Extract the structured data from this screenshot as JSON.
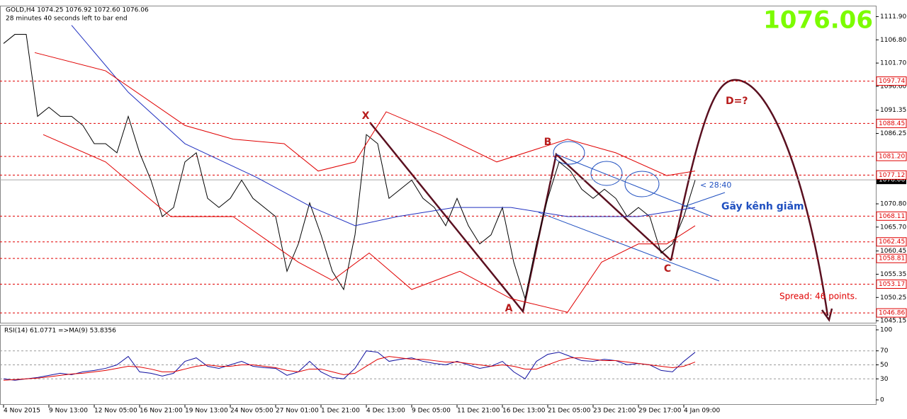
{
  "chart_data": [
    {
      "type": "line",
      "title": "GOLD,H4  1074.25  1076.92  1072.60  1076.06",
      "subtitle": "28 minutes 40 seconds left to bar end",
      "last_price": 1076.06,
      "last_color": "#7cfc00",
      "xlim": [
        -1.25,
        307.75
      ],
      "ylim": [
        1044.7,
        1114.3
      ],
      "xticks": [
        {
          "value": 0,
          "label": "4 Nov 2015"
        },
        {
          "value": 16,
          "label": "9 Nov 13:00"
        },
        {
          "value": 32,
          "label": "12 Nov 05:00"
        },
        {
          "value": 48,
          "label": "16 Nov 21:00"
        },
        {
          "value": 64,
          "label": "19 Nov 13:00"
        },
        {
          "value": 80,
          "label": "24 Nov 05:00"
        },
        {
          "value": 96,
          "label": "27 Nov 01:00"
        },
        {
          "value": 112,
          "label": "1 Dec 21:00"
        },
        {
          "value": 128,
          "label": "4 Dec 13:00"
        },
        {
          "value": 144,
          "label": "9 Dec 05:00"
        },
        {
          "value": 160,
          "label": "11 Dec 21:00"
        },
        {
          "value": 176,
          "label": "16 Dec 13:00"
        },
        {
          "value": 192,
          "label": "21 Dec 05:00"
        },
        {
          "value": 208,
          "label": "23 Dec 21:00"
        },
        {
          "value": 224,
          "label": "29 Dec 17:00"
        },
        {
          "value": 240,
          "label": "4 Jan 09:00"
        }
      ],
      "yticks": [
        {
          "value": 1111.9,
          "label": "1111.90"
        },
        {
          "value": 1106.8,
          "label": "1106.80"
        },
        {
          "value": 1101.7,
          "label": "1101.70"
        },
        {
          "value": 1096.6,
          "label": "1096.60"
        },
        1091.35,
        1086.25,
        {
          "value": 1070.8,
          "label": "1070.80"
        },
        {
          "value": 1065.7,
          "label": "1065.70"
        },
        1060.45,
        1055.35,
        1050.25,
        1045.15
      ],
      "current": 1076.06,
      "levels": [
        1097.74,
        1088.45,
        {
          "value": 1081.2,
          "label": "1081.20"
        },
        1077.12,
        1068.11,
        1062.45,
        1058.81,
        1053.17,
        1046.86
      ],
      "level_color": "#e00000",
      "series": [
        {
          "name": "Close",
          "color": "#000000",
          "x": [
            0,
            4,
            8,
            12,
            16,
            20,
            24,
            28,
            32,
            36,
            40,
            44,
            48,
            52,
            56,
            60,
            64,
            68,
            72,
            76,
            80,
            84,
            88,
            92,
            96,
            100,
            104,
            108,
            112,
            116,
            120,
            124,
            128,
            132,
            136,
            140,
            144,
            148,
            152,
            156,
            160,
            164,
            168,
            172,
            176,
            180,
            184,
            188,
            192,
            196,
            200,
            204,
            208,
            212,
            216,
            220,
            224,
            228,
            232,
            236,
            240,
            244
          ],
          "values": [
            1106,
            1108,
            1108,
            1090,
            1092,
            1090,
            1090,
            1088,
            1084,
            1084,
            1082,
            1090,
            1082,
            1076,
            1068,
            1070,
            1080,
            1082,
            1072,
            1070,
            1072,
            1076,
            1072,
            1070,
            1068,
            1056,
            1062,
            1071,
            1064,
            1056,
            1052,
            1064,
            1086,
            1084,
            1072,
            1074,
            1076,
            1072,
            1070,
            1066,
            1072,
            1066,
            1062,
            1064,
            1070,
            1058,
            1050,
            1062,
            1072,
            1080,
            1078,
            1074,
            1072,
            1074,
            1072,
            1068,
            1070,
            1068,
            1060,
            1062,
            1068,
            1076
          ]
        },
        {
          "name": "MA",
          "color": "#2030c0",
          "x": [
            24,
            44,
            64,
            89,
            109,
            124,
            139,
            159,
            179,
            199,
            224,
            244
          ],
          "values": [
            1110,
            1095.3,
            1084,
            1076.7,
            1070,
            1066,
            1068,
            1070,
            1070,
            1068,
            1068,
            1070
          ]
        },
        {
          "name": "Upper",
          "color": "#e00000",
          "x": [
            11,
            36,
            64,
            81,
            99,
            111,
            124,
            135,
            154,
            174,
            199,
            216,
            234,
            244
          ],
          "values": [
            1104,
            1100,
            1088,
            1085,
            1084,
            1078,
            1080,
            1091,
            1086,
            1080,
            1085,
            1082,
            1077,
            1078
          ]
        },
        {
          "name": "Lower",
          "color": "#e00000",
          "x": [
            14,
            36,
            59,
            81,
            104,
            116,
            129,
            144,
            161,
            179,
            199,
            211,
            224,
            234,
            244
          ],
          "values": [
            1086,
            1080,
            1068,
            1068,
            1058,
            1054,
            1060,
            1052,
            1056,
            1050,
            1047,
            1058,
            1062,
            1062,
            1066
          ]
        }
      ],
      "annotations": [
        "X",
        "A",
        "B",
        "C",
        "D=?",
        "Gãy kênh giảm",
        "< 28:40",
        "Spread: 46 points."
      ]
    },
    {
      "type": "line",
      "title": "RSI(14) 61.0771 =>MA(9) 53.8356",
      "xlim": [
        -1.25,
        307.75
      ],
      "ylim": [
        0,
        100
      ],
      "yticks": [
        100,
        70,
        50,
        30,
        0
      ],
      "levels": [
        70,
        50,
        30
      ],
      "series": [
        {
          "name": "RSI",
          "color": "#1010a0",
          "x": [
            0,
            4,
            8,
            12,
            16,
            20,
            24,
            28,
            32,
            36,
            40,
            44,
            48,
            52,
            56,
            60,
            64,
            68,
            72,
            76,
            80,
            84,
            88,
            92,
            96,
            100,
            104,
            108,
            112,
            116,
            120,
            124,
            128,
            132,
            136,
            140,
            144,
            148,
            152,
            156,
            160,
            164,
            168,
            172,
            176,
            180,
            184,
            188,
            192,
            196,
            200,
            204,
            208,
            212,
            216,
            220,
            224,
            228,
            232,
            236,
            240,
            244
          ],
          "values": [
            30,
            28,
            30,
            32,
            35,
            38,
            36,
            40,
            42,
            45,
            50,
            62,
            40,
            38,
            34,
            38,
            55,
            60,
            48,
            45,
            50,
            55,
            48,
            46,
            45,
            35,
            40,
            55,
            40,
            32,
            30,
            45,
            70,
            68,
            55,
            58,
            60,
            55,
            52,
            50,
            55,
            50,
            45,
            48,
            55,
            40,
            30,
            55,
            65,
            68,
            62,
            56,
            55,
            58,
            56,
            50,
            52,
            50,
            42,
            40,
            55,
            68
          ]
        },
        {
          "name": "MA9",
          "color": "#e00000",
          "x": [
            0,
            4,
            8,
            12,
            16,
            20,
            24,
            28,
            32,
            36,
            40,
            44,
            48,
            52,
            56,
            60,
            64,
            68,
            72,
            76,
            80,
            84,
            88,
            92,
            96,
            100,
            104,
            108,
            112,
            116,
            120,
            124,
            128,
            132,
            136,
            140,
            144,
            148,
            152,
            156,
            160,
            164,
            168,
            172,
            176,
            180,
            184,
            188,
            192,
            196,
            200,
            204,
            208,
            212,
            216,
            220,
            224,
            228,
            232,
            236,
            240,
            244
          ],
          "values": [
            28,
            29,
            30,
            31,
            33,
            35,
            37,
            38,
            40,
            42,
            45,
            48,
            47,
            44,
            40,
            40,
            44,
            48,
            50,
            48,
            48,
            50,
            50,
            48,
            46,
            42,
            40,
            44,
            44,
            40,
            36,
            38,
            48,
            58,
            62,
            60,
            58,
            58,
            56,
            54,
            54,
            52,
            50,
            48,
            50,
            48,
            44,
            44,
            50,
            56,
            60,
            60,
            58,
            56,
            56,
            54,
            52,
            50,
            48,
            46,
            48,
            54
          ]
        }
      ]
    }
  ]
}
